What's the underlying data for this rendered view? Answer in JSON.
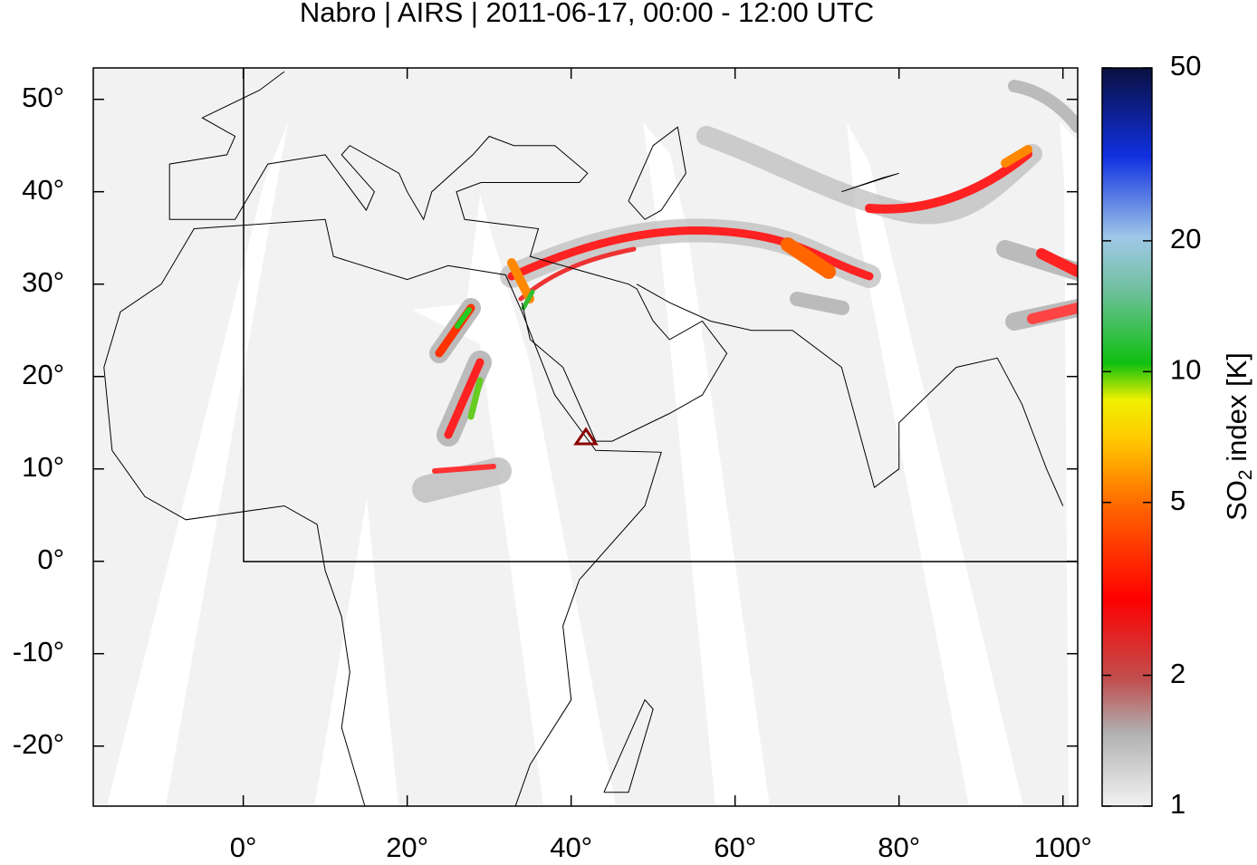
{
  "chart_data": {
    "type": "map",
    "title": "Nabro | AIRS | 2011-06-17, 00:00 - 12:00 UTC",
    "xlim": [
      -18.3,
      101.8
    ],
    "ylim": [
      -26.5,
      53.4
    ],
    "xticks": [
      {
        "value": 0,
        "label": "0°"
      },
      {
        "value": 20,
        "label": "20°"
      },
      {
        "value": 40,
        "label": "40°"
      },
      {
        "value": 60,
        "label": "60°"
      },
      {
        "value": 80,
        "label": "80°"
      },
      {
        "value": 100,
        "label": "100°"
      }
    ],
    "yticks": [
      {
        "value": -20,
        "label": "-20°"
      },
      {
        "value": -10,
        "label": "-10°"
      },
      {
        "value": 0,
        "label": "0°"
      },
      {
        "value": 10,
        "label": "10°"
      },
      {
        "value": 20,
        "label": "20°"
      },
      {
        "value": 30,
        "label": "30°"
      },
      {
        "value": 40,
        "label": "40°"
      },
      {
        "value": 50,
        "label": "50°"
      }
    ],
    "colorbar": {
      "label": [
        "SO",
        "2",
        " index [K]"
      ],
      "scale": "log",
      "lim": [
        1,
        50
      ],
      "ticks": [
        1,
        2,
        5,
        10,
        20,
        50
      ]
    }
  }
}
